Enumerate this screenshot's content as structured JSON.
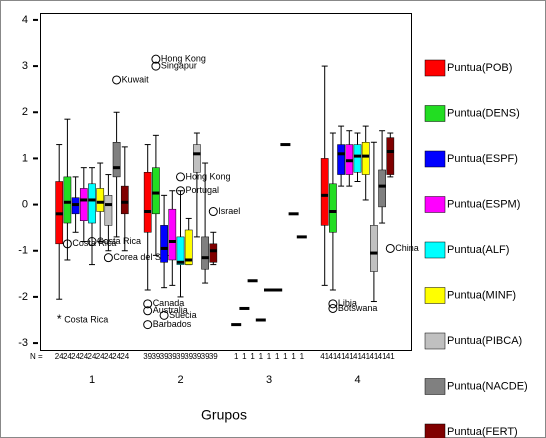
{
  "chart_data": {
    "type": "boxplot",
    "xlabel": "Grupos",
    "n_label": "N =",
    "categories": [
      "1",
      "2",
      "3",
      "4"
    ],
    "ylim": [
      -3.15,
      4.15
    ],
    "yticks": [
      -3,
      -2,
      -1,
      0,
      1,
      2,
      3,
      4
    ],
    "series": [
      {
        "name": "Puntua(POB)",
        "color": "#ff0000",
        "n": [
          24,
          39,
          1,
          41
        ],
        "stats": [
          {
            "min": -2.05,
            "q1": -0.85,
            "median": -0.2,
            "q3": 0.5,
            "max": 1.3
          },
          {
            "min": -1.85,
            "q1": -0.6,
            "median": -0.15,
            "q3": 0.7,
            "max": 1.3
          },
          {
            "median": -2.6
          },
          {
            "min": -1.75,
            "q1": -0.45,
            "median": 0.2,
            "q3": 1.0,
            "max": 3.0
          }
        ],
        "outliers": [
          [
            {
              "value": -2.5,
              "label": "Costa Rica",
              "extreme": true
            }
          ],
          [
            {
              "value": -2.15,
              "label": "Canada"
            },
            {
              "value": -2.3,
              "label": "Australia"
            },
            {
              "value": -2.6,
              "label": "Barbados"
            }
          ],
          [],
          []
        ]
      },
      {
        "name": "Puntua(DENS)",
        "color": "#22dd22",
        "n": [
          24,
          39,
          1,
          41
        ],
        "stats": [
          {
            "min": -1.2,
            "q1": -0.4,
            "median": 0.05,
            "q3": 0.6,
            "max": 1.85
          },
          {
            "min": -1.1,
            "q1": -0.2,
            "median": 0.25,
            "q3": 0.8,
            "max": 1.5
          },
          {
            "median": -2.25
          },
          {
            "min": -1.85,
            "q1": -0.6,
            "median": -0.15,
            "q3": 0.45,
            "max": 1.55
          }
        ],
        "outliers": [
          [
            {
              "value": -0.85,
              "label": "Costa Rica"
            }
          ],
          [
            {
              "value": 3.15,
              "label": "Hong Kong"
            },
            {
              "value": 3.0,
              "label": "Singapur"
            }
          ],
          [],
          [
            {
              "value": -2.15,
              "label": "Libia"
            },
            {
              "value": -2.25,
              "label": "Botswana"
            }
          ]
        ]
      },
      {
        "name": "Puntua(ESPF)",
        "color": "#0000ff",
        "n": [
          24,
          39,
          1,
          41
        ],
        "stats": [
          {
            "min": -0.6,
            "q1": -0.2,
            "median": 0.0,
            "q3": 0.15,
            "max": 0.6
          },
          {
            "min": -1.8,
            "q1": -1.25,
            "median": -0.95,
            "q3": -0.45,
            "max": 0.2
          },
          {
            "median": -1.65
          },
          {
            "min": 0.4,
            "q1": 0.65,
            "median": 1.1,
            "q3": 1.3,
            "max": 1.7
          }
        ],
        "outliers": [
          [],
          [
            {
              "value": -2.4,
              "label": "Suecia"
            }
          ],
          [],
          []
        ]
      },
      {
        "name": "Puntua(ESPM)",
        "color": "#ff00ff",
        "n": [
          24,
          39,
          1,
          41
        ],
        "stats": [
          {
            "min": -0.8,
            "q1": -0.35,
            "median": 0.1,
            "q3": 0.35,
            "max": 0.8
          },
          {
            "min": -1.75,
            "q1": -1.2,
            "median": -0.8,
            "q3": -0.1,
            "max": 0.3
          },
          {
            "median": -2.5
          },
          {
            "min": 0.4,
            "q1": 0.65,
            "median": 0.95,
            "q3": 1.3,
            "max": 1.6
          }
        ],
        "outliers": [
          [],
          [],
          [],
          []
        ]
      },
      {
        "name": "Puntua(ALF)",
        "color": "#00ffff",
        "n": [
          24,
          39,
          1,
          41
        ],
        "stats": [
          {
            "min": -1.3,
            "q1": -0.4,
            "median": 0.1,
            "q3": 0.45,
            "max": 0.8
          },
          {
            "min": -2.0,
            "q1": -1.3,
            "median": -1.25,
            "q3": -0.7,
            "max": 0.3
          },
          {
            "median": -1.85
          },
          {
            "min": 0.5,
            "q1": 0.7,
            "median": 1.05,
            "q3": 1.3,
            "max": 1.55
          }
        ],
        "outliers": [
          [
            {
              "value": -0.8,
              "label": "Costa Rica"
            }
          ],
          [
            {
              "value": 0.6,
              "label": "Hong Kong"
            },
            {
              "value": 0.3,
              "label": "Portugal"
            }
          ],
          [],
          []
        ]
      },
      {
        "name": "Puntua(MINF)",
        "color": "#ffff00",
        "n": [
          24,
          39,
          1,
          41
        ],
        "stats": [
          {
            "min": -0.8,
            "q1": -0.15,
            "median": 0.05,
            "q3": 0.35,
            "max": 0.9
          },
          {
            "min": -1.3,
            "q1": -1.3,
            "median": -1.2,
            "q3": -0.55,
            "max": -0.3
          },
          {
            "median": -1.85
          },
          {
            "min": 0.1,
            "q1": 0.65,
            "median": 1.05,
            "q3": 1.35,
            "max": 1.7
          }
        ],
        "outliers": [
          [],
          [],
          [],
          []
        ]
      },
      {
        "name": "Puntua(PIBCA)",
        "color": "#c0c0c0",
        "n": [
          24,
          39,
          1,
          41
        ],
        "stats": [
          {
            "min": -1.0,
            "q1": -0.45,
            "median": 0.0,
            "q3": 0.2,
            "max": 0.65
          },
          {
            "min": -0.7,
            "q1": 0.7,
            "median": 1.1,
            "q3": 1.3,
            "max": 1.55
          },
          {
            "median": 1.3
          },
          {
            "min": -2.1,
            "q1": -1.45,
            "median": -1.05,
            "q3": -0.45,
            "max": 1.35
          }
        ],
        "outliers": [
          [
            {
              "value": -1.15,
              "label": "Corea del Sur"
            }
          ],
          [],
          [],
          []
        ]
      },
      {
        "name": "Puntua(NACDE)",
        "color": "#808080",
        "n": [
          24,
          39,
          1,
          41
        ],
        "stats": [
          {
            "min": -0.7,
            "q1": 0.6,
            "median": 0.8,
            "q3": 1.35,
            "max": 2.0
          },
          {
            "min": -1.7,
            "q1": -1.4,
            "median": -1.15,
            "q3": -0.7,
            "max": 0.9
          },
          {
            "median": -0.2
          },
          {
            "min": -0.4,
            "q1": -0.05,
            "median": 0.4,
            "q3": 0.75,
            "max": 1.6
          }
        ],
        "outliers": [
          [
            {
              "value": 2.7,
              "label": "Kuwait"
            }
          ],
          [],
          [],
          []
        ]
      },
      {
        "name": "Puntua(FERT)",
        "color": "#800000",
        "n": [
          24,
          39,
          1,
          41
        ],
        "stats": [
          {
            "min": -1.0,
            "q1": -0.2,
            "median": 0.05,
            "q3": 0.4,
            "max": 1.25
          },
          {
            "min": -1.3,
            "q1": -1.25,
            "median": -1.0,
            "q3": -0.85,
            "max": -0.6
          },
          {
            "median": -0.7
          },
          {
            "min": 0.6,
            "q1": 0.65,
            "median": 1.15,
            "q3": 1.45,
            "max": 1.55
          }
        ],
        "outliers": [
          [],
          [
            {
              "value": -0.15,
              "label": "Israel"
            }
          ],
          [],
          [
            {
              "value": -0.95,
              "label": "China"
            }
          ]
        ]
      }
    ]
  }
}
